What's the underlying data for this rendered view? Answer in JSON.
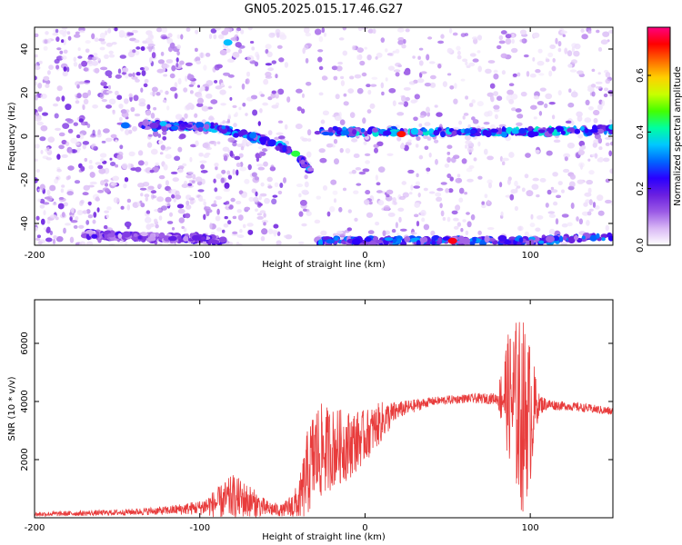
{
  "title": "GN05.2025.015.17.46.G27",
  "chart_data": [
    {
      "type": "heatmap",
      "xlabel": "Height of straight line (km)",
      "ylabel": "Frequency (Hz)",
      "xlim": [
        -200,
        150
      ],
      "ylim": [
        -50,
        50
      ],
      "x_ticks": [
        -200,
        -100,
        0,
        100
      ],
      "y_ticks": [
        -40,
        -20,
        0,
        20,
        40
      ],
      "colorbar": {
        "label": "Normalized spectral amplitude",
        "range": [
          0.0,
          0.77
        ],
        "ticks": [
          0.0,
          0.2,
          0.4,
          0.6
        ],
        "tick_labels": [
          "0.0",
          "0.2",
          "0.4",
          "0.6"
        ],
        "colormap": [
          "#ffffff",
          "#d9b8f5",
          "#9b5ae6",
          "#6a1fe0",
          "#2a00ff",
          "#0066ff",
          "#00c8ff",
          "#00ffa0",
          "#44ff00",
          "#c8ff00",
          "#ffd000",
          "#ff6a00",
          "#ff0000",
          "#ff0080"
        ]
      },
      "gaps": [
        [
          -46,
          -40
        ],
        [
          -33,
          -29
        ]
      ],
      "bright_lines": [
        {
          "x": [
            -135,
            -90,
            -60,
            -42,
            -30
          ],
          "freq": [
            5,
            4,
            -2,
            -8,
            -18
          ],
          "amp": 0.3
        },
        {
          "x": [
            -30,
            0,
            50,
            100,
            150
          ],
          "freq": [
            2,
            2,
            2,
            2,
            3
          ],
          "amp": 0.33
        },
        {
          "x": [
            -30,
            0,
            50,
            100,
            150
          ],
          "freq": [
            -48,
            -48,
            -48,
            -48,
            -46
          ],
          "amp": 0.28
        },
        {
          "x": [
            -170,
            -140,
            -100,
            -85
          ],
          "freq": [
            -45,
            -46,
            -47,
            -48
          ],
          "amp": 0.18
        }
      ],
      "hotspots": [
        {
          "x": 22,
          "freq": 1,
          "amp": 0.7
        },
        {
          "x": 53,
          "freq": -48,
          "amp": 0.72
        },
        {
          "x": -42,
          "freq": -8,
          "amp": 0.45
        },
        {
          "x": -83,
          "freq": 43,
          "amp": 0.35
        },
        {
          "x": -145,
          "freq": 5,
          "amp": 0.3
        }
      ]
    },
    {
      "type": "line",
      "xlabel": "Height of straight line (km)",
      "ylabel": "SNR (10 * v/v)",
      "xlim": [
        -200,
        150
      ],
      "ylim": [
        0,
        7500
      ],
      "x_ticks": [
        -200,
        -100,
        0,
        100
      ],
      "y_ticks": [
        2000,
        4000,
        6000
      ],
      "color": "#e83c3c",
      "envelope": {
        "x": [
          -200,
          -150,
          -120,
          -100,
          -90,
          -80,
          -70,
          -60,
          -50,
          -40,
          -35,
          -30,
          -20,
          -10,
          0,
          10,
          20,
          40,
          60,
          80,
          85,
          90,
          95,
          100,
          105,
          110,
          120,
          130,
          150
        ],
        "mean": [
          120,
          180,
          250,
          350,
          500,
          700,
          550,
          320,
          250,
          500,
          1500,
          2200,
          2400,
          2500,
          2800,
          3300,
          3700,
          4000,
          4100,
          4100,
          4300,
          4000,
          3500,
          3600,
          3900,
          3900,
          3850,
          3800,
          3650
        ],
        "amplitude": [
          80,
          100,
          150,
          250,
          500,
          800,
          600,
          300,
          200,
          700,
          1500,
          1800,
          1400,
          1200,
          900,
          700,
          300,
          150,
          150,
          200,
          1800,
          2800,
          3500,
          2500,
          400,
          200,
          150,
          150,
          150
        ]
      }
    }
  ]
}
